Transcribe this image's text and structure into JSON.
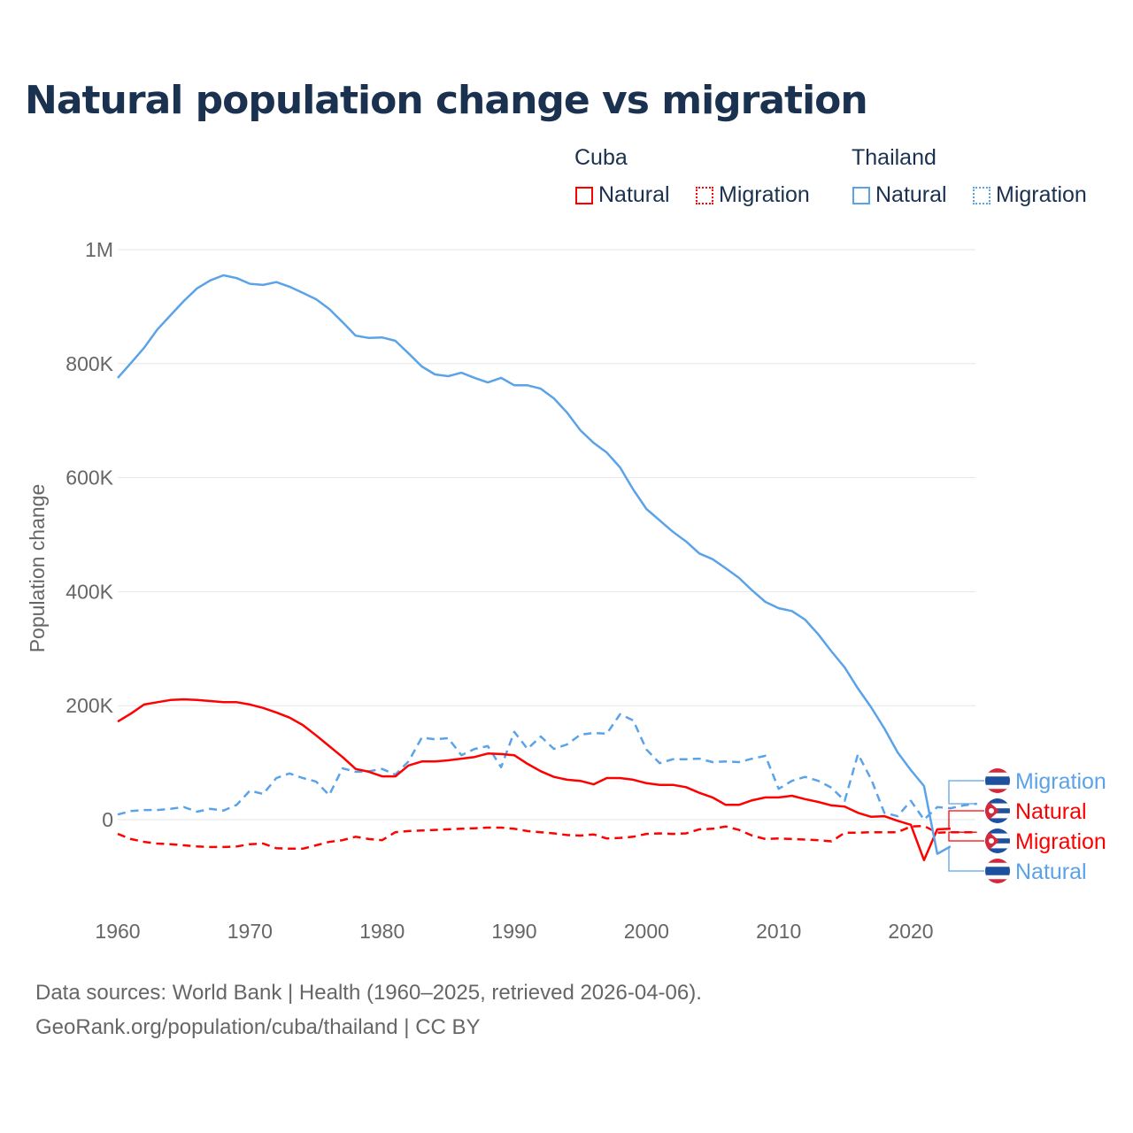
{
  "title": "Natural population change vs migration",
  "legend": {
    "groups": [
      {
        "name": "Cuba",
        "items": [
          "Natural",
          "Migration"
        ],
        "color": "#ff0000"
      },
      {
        "name": "Thailand",
        "items": [
          "Natural",
          "Migration"
        ],
        "color": "#5ba3e8"
      }
    ]
  },
  "footer": {
    "line1": "Data sources: World Bank | Health (1960–2025, retrieved 2026-04-06).",
    "line2": "GeoRank.org/population/cuba/thailand | CC BY"
  },
  "chart_data": {
    "type": "line",
    "title": "Natural population change vs migration",
    "ylabel": "Population change",
    "xlabel": "",
    "xlim": [
      1960,
      2025
    ],
    "ylim": [
      -150000,
      1000000
    ],
    "x_ticks": [
      1960,
      1970,
      1980,
      1990,
      2000,
      2010,
      2020
    ],
    "y_ticks": [
      0,
      200000,
      400000,
      600000,
      800000,
      1000000
    ],
    "y_tick_labels": [
      "0",
      "200K",
      "400K",
      "600K",
      "800K",
      "1M"
    ],
    "grid": true,
    "legend_position": "top-right",
    "start_year": 1960,
    "series": [
      {
        "name": "Thailand Migration",
        "label": "Migration",
        "color": "#5ba3e8",
        "dash": true,
        "flag": "thailand",
        "values_k": [
          9,
          15,
          17,
          17,
          19,
          22,
          14,
          19,
          16,
          26,
          51,
          45,
          73,
          81,
          73,
          67,
          43,
          90,
          84,
          85,
          89,
          79,
          102,
          144,
          141,
          143,
          113,
          124,
          129,
          92,
          154,
          124,
          146,
          124,
          132,
          149,
          152,
          151,
          185,
          174,
          123,
          99,
          106,
          106,
          107,
          101,
          102,
          101,
          107,
          112,
          54,
          68,
          75,
          68,
          56,
          33,
          115,
          71,
          12,
          6,
          33,
          0,
          22,
          20,
          25,
          28
        ]
      },
      {
        "name": "Cuba Natural",
        "label": "Natural",
        "color": "#ff0000",
        "dash": false,
        "flag": "cuba",
        "values_k": [
          172,
          186,
          202,
          206,
          210,
          211,
          210,
          208,
          206,
          206,
          202,
          196,
          188,
          179,
          166,
          148,
          129,
          110,
          89,
          84,
          76,
          76,
          95,
          102,
          102,
          104,
          107,
          110,
          116,
          115,
          113,
          98,
          85,
          75,
          70,
          68,
          62,
          73,
          73,
          70,
          64,
          61,
          61,
          57,
          47,
          39,
          26,
          26,
          34,
          39,
          39,
          42,
          36,
          31,
          25,
          23,
          12,
          5,
          6,
          -2,
          -9,
          -71,
          -17,
          -16
        ]
      },
      {
        "name": "Cuba Migration",
        "label": "Migration",
        "color": "#ff0000",
        "dash": true,
        "flag": "cuba",
        "values_k": [
          -25,
          -34,
          -39,
          -42,
          -43,
          -45,
          -47,
          -48,
          -48,
          -47,
          -43,
          -42,
          -50,
          -51,
          -51,
          -45,
          -39,
          -36,
          -30,
          -34,
          -36,
          -22,
          -20,
          -19,
          -18,
          -17,
          -16,
          -15,
          -14,
          -14,
          -16,
          -20,
          -22,
          -24,
          -27,
          -28,
          -26,
          -33,
          -32,
          -30,
          -25,
          -24,
          -25,
          -24,
          -17,
          -16,
          -12,
          -18,
          -28,
          -34,
          -33,
          -34,
          -35,
          -36,
          -38,
          -23,
          -23,
          -22,
          -22,
          -22,
          -12,
          -11,
          -23,
          -22,
          -22,
          -22
        ]
      },
      {
        "name": "Thailand Natural",
        "label": "Natural",
        "color": "#5ba3e8",
        "dash": false,
        "flag": "thailand",
        "values_k": [
          775,
          801,
          828,
          860,
          885,
          910,
          932,
          946,
          955,
          950,
          940,
          938,
          943,
          935,
          924,
          913,
          896,
          873,
          849,
          845,
          846,
          840,
          818,
          795,
          781,
          778,
          784,
          775,
          767,
          775,
          762,
          762,
          756,
          739,
          714,
          683,
          661,
          644,
          618,
          579,
          545,
          525,
          505,
          488,
          467,
          457,
          441,
          424,
          402,
          382,
          371,
          366,
          351,
          325,
          295,
          267,
          230,
          197,
          160,
          118,
          87,
          59,
          -60,
          -47
        ]
      }
    ]
  }
}
